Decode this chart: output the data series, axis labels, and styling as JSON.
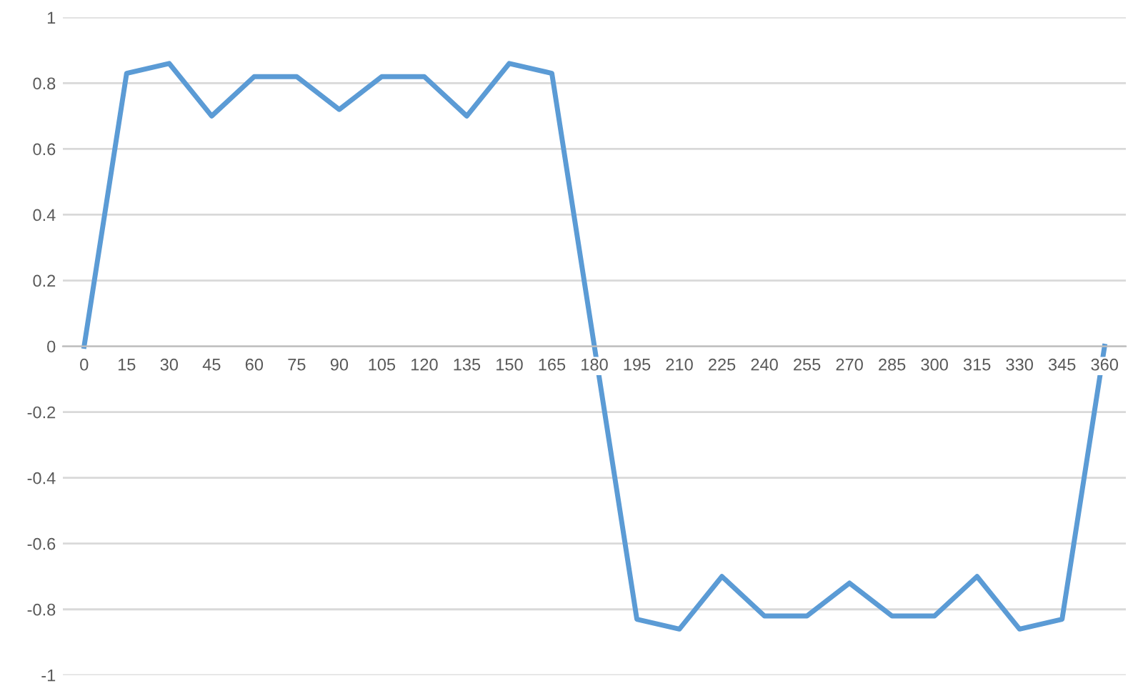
{
  "chart_data": {
    "type": "line",
    "categories": [
      "0",
      "15",
      "30",
      "45",
      "60",
      "75",
      "90",
      "105",
      "120",
      "135",
      "150",
      "165",
      "180",
      "195",
      "210",
      "225",
      "240",
      "255",
      "270",
      "285",
      "300",
      "315",
      "330",
      "345",
      "360"
    ],
    "series": [
      {
        "color": "#5b9bd5",
        "values": [
          0,
          0.83,
          0.86,
          0.7,
          0.82,
          0.82,
          0.72,
          0.82,
          0.82,
          0.7,
          0.86,
          0.83,
          0,
          -0.83,
          -0.86,
          -0.7,
          -0.82,
          -0.82,
          -0.72,
          -0.82,
          -0.82,
          -0.7,
          -0.86,
          -0.83,
          0
        ]
      }
    ],
    "ylim": [
      -1,
      1
    ],
    "yticks": [
      -1,
      -0.8,
      -0.6,
      -0.4,
      -0.2,
      0,
      0.2,
      0.4,
      0.6,
      0.8,
      1
    ],
    "grid": "y",
    "marker": "none",
    "line_style": "solid"
  }
}
